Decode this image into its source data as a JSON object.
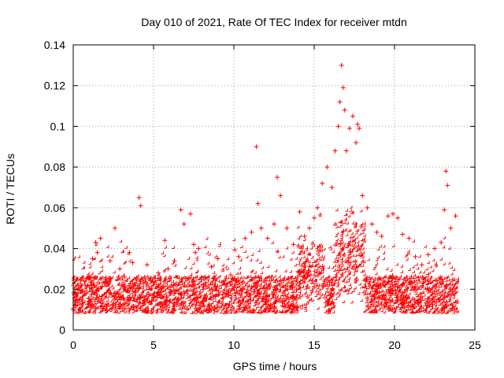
{
  "chart_data": {
    "type": "scatter",
    "title": "Day 010 of 2021, Rate Of TEC Index for receiver mtdn",
    "xlabel": "GPS time / hours",
    "ylabel": "ROTI / TECUs",
    "xlim": [
      0,
      25
    ],
    "ylim": [
      0,
      0.14
    ],
    "xticks": [
      0,
      5,
      10,
      15,
      20,
      25
    ],
    "xtick_labels": [
      "0",
      "5",
      "10",
      "15",
      "20",
      "25"
    ],
    "yticks": [
      0,
      0.02,
      0.04,
      0.06,
      0.08,
      0.1,
      0.12,
      0.14
    ],
    "ytick_labels": [
      "0",
      "0.02",
      "0.04",
      "0.06",
      "0.08",
      "0.1",
      "0.12",
      "0.14"
    ],
    "grid": true,
    "marker": "+",
    "series": [
      {
        "name": "ROTI",
        "color": "#ff0000",
        "x": [
          0.1,
          0.3,
          0.4,
          0.8,
          1.2,
          1.4,
          1.5,
          1.7,
          2.0,
          2.3,
          2.6,
          2.9,
          3.2,
          3.5,
          3.7,
          4.1,
          4.2,
          4.6,
          4.9,
          5.3,
          5.7,
          5.9,
          6.3,
          6.7,
          6.9,
          7.3,
          7.5,
          7.6,
          7.8,
          8.2,
          8.6,
          9.0,
          9.4,
          9.8,
          10.3,
          10.7,
          11.1,
          11.4,
          11.5,
          11.7,
          12.1,
          12.5,
          12.7,
          12.9,
          13.3,
          13.7,
          14.1,
          14.4,
          14.7,
          15.0,
          15.2,
          15.5,
          15.8,
          16.1,
          16.3,
          16.5,
          16.6,
          16.7,
          16.8,
          16.9,
          17.0,
          17.2,
          17.4,
          17.6,
          17.7,
          17.8,
          18.0,
          18.3,
          18.6,
          18.9,
          19.2,
          19.6,
          19.9,
          20.2,
          20.5,
          20.9,
          21.3,
          21.7,
          22.1,
          22.5,
          22.9,
          23.1,
          23.2,
          23.3,
          23.5,
          23.8
        ],
        "y": [
          0.012,
          0.022,
          0.015,
          0.018,
          0.035,
          0.043,
          0.038,
          0.045,
          0.025,
          0.034,
          0.05,
          0.03,
          0.026,
          0.038,
          0.033,
          0.065,
          0.061,
          0.032,
          0.024,
          0.028,
          0.044,
          0.03,
          0.034,
          0.059,
          0.052,
          0.057,
          0.042,
          0.038,
          0.04,
          0.026,
          0.031,
          0.035,
          0.024,
          0.027,
          0.036,
          0.045,
          0.048,
          0.09,
          0.062,
          0.05,
          0.045,
          0.052,
          0.075,
          0.066,
          0.05,
          0.042,
          0.058,
          0.046,
          0.05,
          0.055,
          0.06,
          0.072,
          0.08,
          0.07,
          0.088,
          0.1,
          0.112,
          0.13,
          0.119,
          0.108,
          0.088,
          0.099,
          0.105,
          0.092,
          0.101,
          0.099,
          0.066,
          0.06,
          0.052,
          0.048,
          0.046,
          0.056,
          0.057,
          0.055,
          0.047,
          0.045,
          0.036,
          0.032,
          0.037,
          0.04,
          0.043,
          0.059,
          0.078,
          0.071,
          0.05,
          0.056
        ]
      }
    ]
  }
}
